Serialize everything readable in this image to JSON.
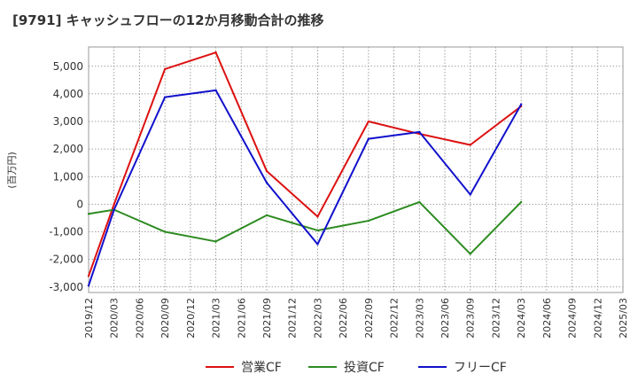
{
  "chart_data": {
    "type": "line",
    "title": "[9791]  キャッシュフローの12か月移動合計の推移",
    "ylabel": "(百万円)",
    "xlabel": "",
    "ylim": [
      -3200,
      5700
    ],
    "yticks": [
      -3000,
      -2000,
      -1000,
      0,
      1000,
      2000,
      3000,
      4000,
      5000
    ],
    "ytick_labels": [
      "-3,000",
      "-2,000",
      "-1,000",
      "0",
      "1,000",
      "2,000",
      "3,000",
      "4,000",
      "5,000"
    ],
    "categories": [
      "2019/12",
      "2020/03",
      "2020/06",
      "2020/09",
      "2020/12",
      "2021/03",
      "2021/06",
      "2021/09",
      "2021/12",
      "2022/03",
      "2022/06",
      "2022/09",
      "2022/12",
      "2023/03",
      "2023/06",
      "2023/09",
      "2023/12",
      "2024/03",
      "2024/06",
      "2024/09",
      "2024/12",
      "2025/03"
    ],
    "grid": true,
    "legend_position": "bottom",
    "series": [
      {
        "name": "営業CF",
        "color": "#dd1111",
        "values": [
          -2600,
          0,
          null,
          4900,
          null,
          5500,
          null,
          1200,
          null,
          -450,
          null,
          3000,
          null,
          2550,
          null,
          2150,
          null,
          3550,
          null,
          null,
          null,
          null
        ]
      },
      {
        "name": "投資CF",
        "color": "#2e8b22",
        "values": [
          -350,
          -200,
          null,
          -1000,
          null,
          -1350,
          null,
          -400,
          null,
          -950,
          null,
          -600,
          null,
          80,
          null,
          -1800,
          null,
          80,
          null,
          null,
          null,
          null
        ]
      },
      {
        "name": "フリーCF",
        "color": "#1111cc",
        "values": [
          -2950,
          -200,
          null,
          3880,
          null,
          4130,
          null,
          780,
          null,
          -1450,
          null,
          2370,
          null,
          2620,
          null,
          350,
          null,
          3620,
          null,
          null,
          null,
          null
        ]
      }
    ]
  }
}
